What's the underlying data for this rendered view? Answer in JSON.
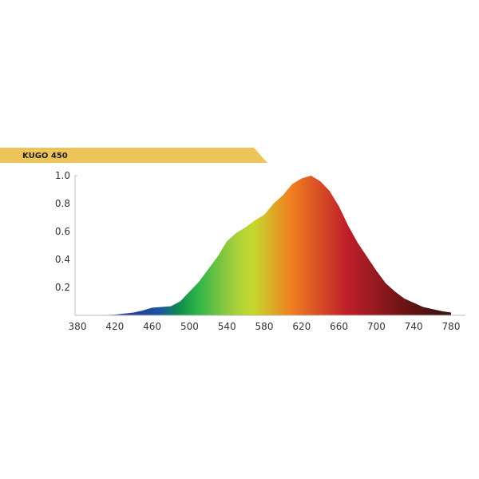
{
  "banner": {
    "label": "KUGO 450",
    "color": "#ecc45a"
  },
  "chart_data": {
    "type": "area",
    "title": "KUGO 450",
    "xlabel": "",
    "ylabel": "",
    "xlim": [
      380,
      780
    ],
    "ylim": [
      0,
      1.0
    ],
    "x_ticks": [
      "380",
      "420",
      "460",
      "500",
      "540",
      "580",
      "620",
      "660",
      "700",
      "740",
      "780"
    ],
    "y_ticks": [
      "0.2",
      "0.4",
      "0.6",
      "0.8",
      "1.0"
    ],
    "grid": false,
    "fill": "visible-spectrum gradient",
    "x": [
      380,
      400,
      420,
      440,
      450,
      460,
      470,
      480,
      490,
      500,
      510,
      520,
      530,
      540,
      550,
      560,
      570,
      580,
      590,
      600,
      610,
      620,
      630,
      640,
      650,
      660,
      670,
      680,
      690,
      700,
      710,
      720,
      730,
      740,
      750,
      760,
      770,
      780
    ],
    "values": [
      0,
      0,
      0.005,
      0.02,
      0.035,
      0.055,
      0.06,
      0.065,
      0.1,
      0.17,
      0.24,
      0.33,
      0.42,
      0.53,
      0.59,
      0.63,
      0.68,
      0.72,
      0.8,
      0.86,
      0.94,
      0.98,
      1.0,
      0.96,
      0.89,
      0.78,
      0.64,
      0.52,
      0.42,
      0.32,
      0.23,
      0.17,
      0.12,
      0.09,
      0.06,
      0.045,
      0.03,
      0.02
    ]
  }
}
